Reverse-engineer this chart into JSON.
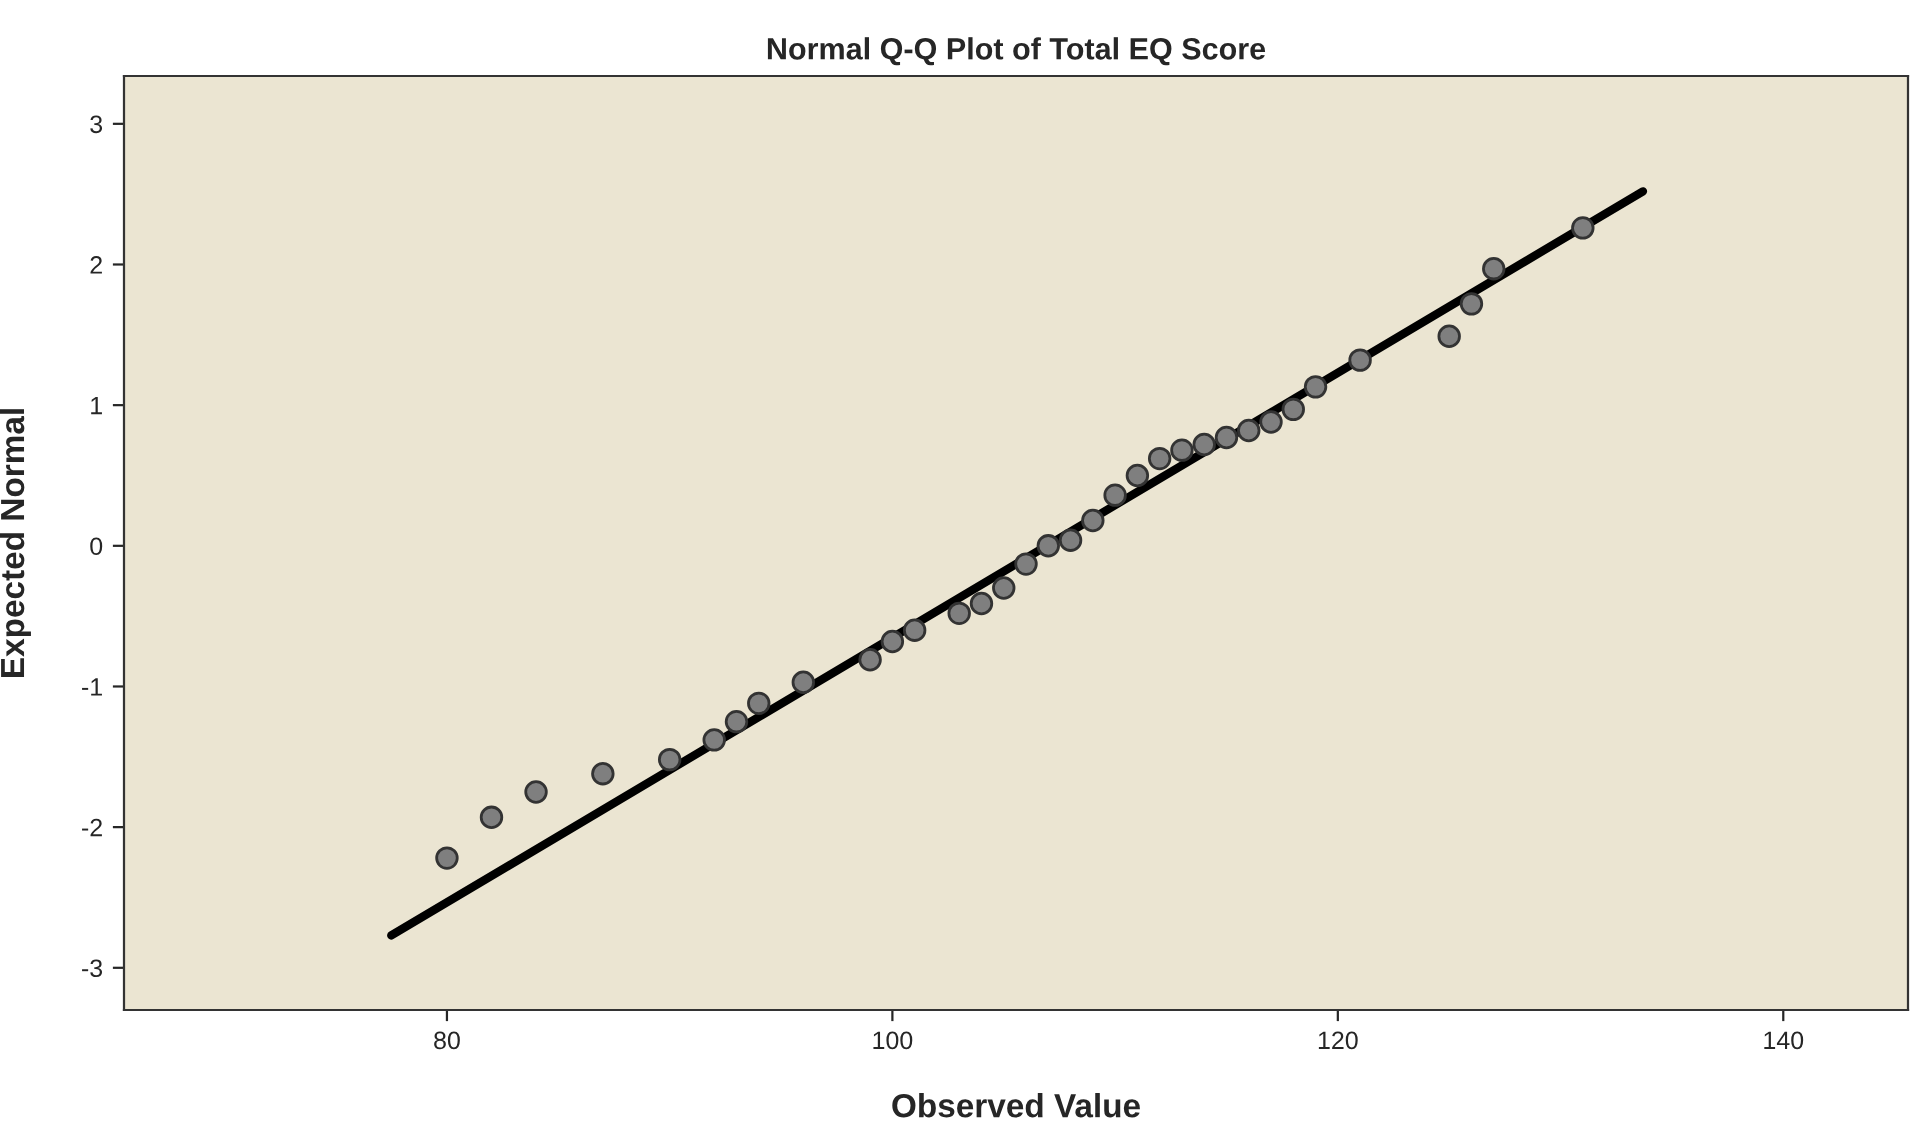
{
  "chart_data": {
    "type": "scatter",
    "title": "Normal Q-Q Plot of Total EQ Score",
    "xlabel": "Observed Value",
    "ylabel": "Expected Normal",
    "xlim": [
      65.5,
      145.6
    ],
    "ylim": [
      -3.3,
      3.34
    ],
    "xticks": [
      80,
      100,
      120,
      140
    ],
    "yticks": [
      -3,
      -2,
      -1,
      0,
      1,
      2,
      3
    ],
    "grid": false,
    "series": [
      {
        "marker": "circle",
        "color": "#7f7f7f",
        "x": [
          80,
          82,
          84,
          87,
          90,
          92,
          93,
          94,
          96,
          99,
          100,
          101,
          103,
          104,
          105,
          106,
          107,
          108,
          109,
          110,
          111,
          112,
          113,
          114,
          115,
          116,
          117,
          118,
          119,
          121,
          125,
          126,
          127,
          131
        ],
        "values": [
          -2.22,
          -1.93,
          -1.75,
          -1.62,
          -1.52,
          -1.38,
          -1.25,
          -1.12,
          -0.97,
          -0.81,
          -0.68,
          -0.6,
          -0.48,
          -0.41,
          -0.3,
          -0.13,
          0.0,
          0.04,
          0.18,
          0.36,
          0.5,
          0.62,
          0.68,
          0.72,
          0.77,
          0.82,
          0.88,
          0.97,
          1.13,
          1.32,
          1.49,
          1.72,
          1.97,
          2.26
        ]
      },
      {
        "type": "line",
        "marker": "none",
        "color": "#000000",
        "line_style": "solid",
        "x": [
          77.5,
          133.7
        ],
        "values": [
          -2.77,
          2.52
        ]
      }
    ]
  }
}
